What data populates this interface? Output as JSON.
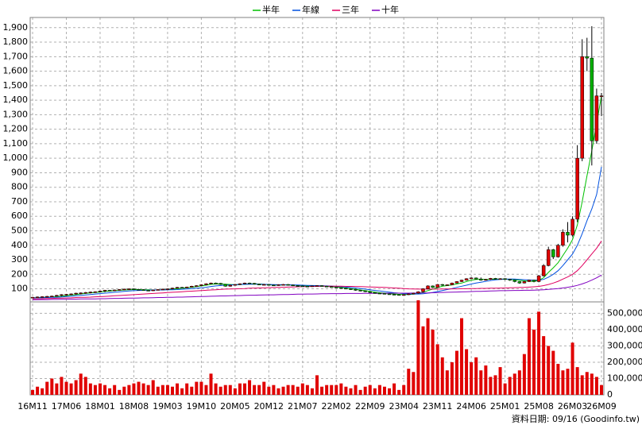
{
  "chart_data": {
    "type": "candlestick",
    "categories": [
      "16M11",
      null,
      null,
      null,
      null,
      null,
      null,
      "17M06",
      null,
      null,
      null,
      null,
      null,
      null,
      "18M01",
      null,
      null,
      null,
      null,
      null,
      null,
      "18M08",
      null,
      null,
      null,
      null,
      null,
      null,
      "19M03",
      null,
      null,
      null,
      null,
      null,
      null,
      "19M10",
      null,
      null,
      null,
      null,
      null,
      null,
      "20M05",
      null,
      null,
      null,
      null,
      null,
      null,
      "20M12",
      null,
      null,
      null,
      null,
      null,
      null,
      "21M07",
      null,
      null,
      null,
      null,
      null,
      null,
      "22M02",
      null,
      null,
      null,
      null,
      null,
      null,
      "22M09",
      null,
      null,
      null,
      null,
      null,
      null,
      "23M04",
      null,
      null,
      null,
      null,
      null,
      null,
      "23M11",
      null,
      null,
      null,
      null,
      null,
      null,
      "24M06",
      null,
      null,
      null,
      null,
      null,
      null,
      "25M01",
      null,
      null,
      null,
      null,
      null,
      null,
      "25M08",
      null,
      null,
      null,
      null,
      null,
      null,
      "26M03",
      null,
      null,
      null,
      null,
      null,
      "26M09"
    ],
    "open": [
      40,
      42,
      44,
      46,
      48,
      50,
      55,
      60,
      62,
      65,
      70,
      72,
      75,
      78,
      80,
      85,
      90,
      88,
      92,
      95,
      98,
      100,
      96,
      94,
      90,
      88,
      92,
      95,
      98,
      100,
      105,
      110,
      108,
      112,
      118,
      122,
      128,
      135,
      140,
      138,
      130,
      118,
      125,
      130,
      135,
      140,
      138,
      132,
      128,
      130,
      126,
      124,
      128,
      130,
      126,
      122,
      120,
      118,
      116,
      120,
      122,
      118,
      115,
      112,
      108,
      104,
      100,
      96,
      90,
      86,
      80,
      74,
      70,
      68,
      65,
      62,
      60,
      58,
      60,
      65,
      70,
      80,
      100,
      120,
      110,
      130,
      125,
      128,
      140,
      150,
      160,
      170,
      175,
      168,
      160,
      165,
      172,
      168,
      170,
      165,
      160,
      150,
      140,
      150,
      160,
      150,
      190,
      260,
      370,
      320,
      400,
      490,
      470,
      580,
      1000,
      1700,
      1690,
      1120,
      1430
    ],
    "high": [
      44,
      47,
      49,
      51,
      53,
      58,
      63,
      65,
      68,
      73,
      75,
      78,
      81,
      83,
      88,
      93,
      93,
      95,
      98,
      101,
      103,
      103,
      100,
      97,
      93,
      95,
      98,
      101,
      103,
      108,
      113,
      113,
      115,
      121,
      125,
      131,
      138,
      143,
      143,
      141,
      133,
      128,
      133,
      138,
      143,
      143,
      141,
      135,
      133,
      133,
      129,
      131,
      133,
      133,
      129,
      125,
      123,
      121,
      123,
      125,
      125,
      121,
      118,
      115,
      111,
      107,
      103,
      99,
      93,
      89,
      83,
      77,
      73,
      71,
      68,
      65,
      63,
      63,
      68,
      73,
      83,
      104,
      124,
      123,
      133,
      133,
      131,
      143,
      153,
      163,
      173,
      179,
      178,
      178,
      168,
      175,
      175,
      173,
      173,
      168,
      163,
      153,
      153,
      163,
      163,
      195,
      270,
      390,
      375,
      410,
      510,
      560,
      600,
      1090,
      1820,
      1830,
      1910,
      1480,
      1450
    ],
    "low": [
      37,
      39,
      41,
      43,
      45,
      47,
      49,
      53,
      57,
      59,
      62,
      66,
      69,
      72,
      75,
      77,
      85,
      85,
      88,
      91,
      94,
      93,
      90,
      87,
      85,
      85,
      89,
      92,
      95,
      97,
      102,
      105,
      105,
      109,
      115,
      119,
      125,
      132,
      134,
      127,
      115,
      115,
      122,
      127,
      132,
      134,
      129,
      125,
      125,
      123,
      121,
      121,
      125,
      123,
      119,
      117,
      115,
      113,
      113,
      117,
      115,
      112,
      108,
      105,
      101,
      97,
      93,
      87,
      83,
      77,
      71,
      67,
      65,
      62,
      59,
      57,
      55,
      55,
      57,
      62,
      67,
      77,
      97,
      106,
      107,
      121,
      122,
      125,
      137,
      147,
      157,
      167,
      164,
      156,
      157,
      162,
      164,
      165,
      160,
      155,
      145,
      135,
      137,
      147,
      145,
      145,
      185,
      255,
      305,
      315,
      390,
      420,
      460,
      560,
      980,
      1600,
      950,
      1100,
      1290
    ],
    "close": [
      42,
      44,
      46,
      48,
      50,
      55,
      60,
      62,
      65,
      70,
      72,
      75,
      78,
      80,
      85,
      90,
      88,
      92,
      95,
      98,
      100,
      96,
      94,
      90,
      88,
      92,
      95,
      98,
      100,
      105,
      110,
      108,
      112,
      118,
      122,
      128,
      135,
      140,
      138,
      130,
      118,
      125,
      130,
      135,
      140,
      138,
      132,
      128,
      130,
      126,
      124,
      128,
      130,
      126,
      122,
      120,
      118,
      116,
      120,
      122,
      118,
      115,
      112,
      108,
      104,
      100,
      96,
      90,
      86,
      80,
      74,
      70,
      68,
      65,
      62,
      60,
      58,
      60,
      65,
      70,
      80,
      100,
      120,
      110,
      130,
      125,
      128,
      140,
      150,
      160,
      170,
      175,
      168,
      160,
      165,
      172,
      168,
      170,
      165,
      160,
      150,
      140,
      150,
      160,
      150,
      190,
      260,
      370,
      320,
      400,
      490,
      470,
      580,
      1000,
      1700,
      1690,
      1120,
      1430,
      1430
    ],
    "up_color": "#e00000",
    "down_color": "#00b000",
    "volume": {
      "color": "#e00000",
      "values": [
        30000,
        50000,
        40000,
        80000,
        100000,
        70000,
        110000,
        80000,
        70000,
        90000,
        130000,
        110000,
        70000,
        60000,
        70000,
        60000,
        40000,
        60000,
        30000,
        50000,
        60000,
        70000,
        80000,
        70000,
        60000,
        90000,
        50000,
        60000,
        60000,
        50000,
        70000,
        40000,
        70000,
        50000,
        80000,
        80000,
        60000,
        130000,
        70000,
        50000,
        60000,
        60000,
        40000,
        70000,
        70000,
        90000,
        60000,
        60000,
        80000,
        50000,
        60000,
        40000,
        50000,
        60000,
        60000,
        50000,
        70000,
        60000,
        40000,
        120000,
        50000,
        60000,
        60000,
        60000,
        70000,
        50000,
        40000,
        60000,
        30000,
        50000,
        60000,
        40000,
        60000,
        50000,
        40000,
        70000,
        30000,
        60000,
        160000,
        140000,
        580000,
        420000,
        470000,
        400000,
        310000,
        230000,
        150000,
        200000,
        270000,
        470000,
        280000,
        200000,
        230000,
        150000,
        180000,
        110000,
        120000,
        170000,
        70000,
        110000,
        130000,
        150000,
        250000,
        470000,
        400000,
        510000,
        360000,
        300000,
        270000,
        190000,
        150000,
        160000,
        320000,
        170000,
        120000,
        140000,
        130000,
        110000,
        60000
      ]
    },
    "series": [
      {
        "name": "半年",
        "color": "#00c000",
        "values": [
          38,
          39,
          41,
          42,
          44,
          46,
          49,
          53,
          57,
          61,
          65,
          69,
          72,
          75,
          78,
          82,
          85,
          88,
          90,
          92,
          94,
          95,
          95,
          94,
          93,
          92,
          92,
          93,
          95,
          98,
          101,
          104,
          107,
          111,
          115,
          120,
          125,
          131,
          133,
          134,
          132,
          130,
          128,
          129,
          131,
          133,
          134,
          133,
          131,
          129,
          127,
          126,
          127,
          127,
          126,
          124,
          122,
          120,
          119,
          119,
          119,
          118,
          116,
          113,
          109,
          105,
          101,
          97,
          92,
          87,
          82,
          77,
          73,
          70,
          67,
          64,
          62,
          61,
          61,
          63,
          67,
          76,
          88,
          98,
          108,
          118,
          122,
          127,
          134,
          140,
          150,
          160,
          165,
          166,
          165,
          166,
          166,
          167,
          167,
          166,
          163,
          159,
          155,
          152,
          152,
          158,
          177,
          213,
          245,
          280,
          330,
          380,
          440,
          540,
          700,
          880,
          1050,
          1240,
          1430
        ]
      },
      {
        "name": "年線",
        "color": "#0050e0",
        "values": [
          38,
          38,
          39,
          40,
          41,
          42,
          44,
          46,
          49,
          52,
          55,
          58,
          61,
          64,
          67,
          70,
          73,
          76,
          79,
          82,
          85,
          87,
          89,
          90,
          91,
          92,
          92,
          92,
          93,
          94,
          95,
          97,
          99,
          101,
          104,
          107,
          111,
          116,
          120,
          123,
          125,
          127,
          128,
          130,
          131,
          132,
          132,
          132,
          131,
          130,
          129,
          128,
          128,
          127,
          127,
          126,
          125,
          124,
          123,
          122,
          121,
          120,
          119,
          117,
          115,
          112,
          109,
          106,
          102,
          98,
          93,
          89,
          85,
          81,
          77,
          73,
          70,
          67,
          65,
          64,
          64,
          66,
          70,
          75,
          81,
          88,
          95,
          102,
          110,
          118,
          125,
          133,
          140,
          146,
          152,
          157,
          162,
          165,
          166,
          167,
          167,
          165,
          163,
          161,
          160,
          160,
          165,
          180,
          200,
          225,
          260,
          300,
          340,
          400,
          480,
          570,
          650,
          750,
          940
        ]
      },
      {
        "name": "三年",
        "color": "#e00060",
        "values": [
          30,
          31,
          32,
          33,
          34,
          35,
          36,
          37,
          38,
          40,
          41,
          42,
          43,
          45,
          46,
          48,
          50,
          52,
          54,
          56,
          58,
          60,
          62,
          64,
          66,
          68,
          70,
          72,
          74,
          76,
          78,
          80,
          82,
          84,
          86,
          88,
          90,
          92,
          94,
          96,
          98,
          99,
          100,
          101,
          102,
          104,
          105,
          106,
          107,
          108,
          109,
          110,
          111,
          112,
          113,
          114,
          115,
          116,
          117,
          117,
          118,
          118,
          118,
          118,
          118,
          117,
          117,
          116,
          115,
          114,
          113,
          112,
          111,
          110,
          108,
          106,
          104,
          102,
          100,
          99,
          98,
          98,
          98,
          98,
          98,
          99,
          99,
          100,
          100,
          101,
          101,
          102,
          102,
          103,
          103,
          104,
          104,
          105,
          106,
          107,
          108,
          109,
          110,
          112,
          114,
          117,
          122,
          130,
          140,
          152,
          167,
          182,
          200,
          225,
          260,
          300,
          340,
          380,
          430
        ]
      },
      {
        "name": "十年",
        "color": "#8000c0",
        "values": [
          25,
          25,
          26,
          26,
          27,
          27,
          28,
          28,
          29,
          29,
          30,
          30,
          31,
          31,
          32,
          32,
          33,
          34,
          34,
          35,
          36,
          36,
          37,
          38,
          38,
          39,
          40,
          40,
          41,
          42,
          43,
          43,
          44,
          45,
          46,
          47,
          48,
          49,
          50,
          51,
          51,
          52,
          53,
          54,
          55,
          56,
          56,
          57,
          58,
          59,
          59,
          60,
          61,
          61,
          62,
          63,
          63,
          64,
          64,
          65,
          66,
          66,
          67,
          67,
          67,
          68,
          68,
          68,
          68,
          69,
          69,
          69,
          69,
          69,
          70,
          70,
          70,
          70,
          70,
          71,
          71,
          72,
          72,
          73,
          74,
          75,
          76,
          77,
          78,
          79,
          80,
          81,
          82,
          83,
          84,
          85,
          86,
          87,
          87,
          88,
          89,
          89,
          90,
          90,
          91,
          92,
          94,
          96,
          99,
          102,
          106,
          111,
          116,
          124,
          134,
          146,
          160,
          176,
          195
        ]
      }
    ],
    "ylim": [
      10,
      1970
    ],
    "yticks": [
      100,
      200,
      300,
      400,
      500,
      600,
      700,
      800,
      900,
      {
        "value": 1000,
        "label": "1,000"
      },
      {
        "value": 1100,
        "label": "1,100"
      },
      {
        "value": 1200,
        "label": "1,200"
      },
      {
        "value": 1300,
        "label": "1,300"
      },
      {
        "value": 1400,
        "label": "1,400"
      },
      {
        "value": 1500,
        "label": "1,500"
      },
      {
        "value": 1600,
        "label": "1,600"
      },
      {
        "value": 1700,
        "label": "1,700"
      },
      {
        "value": 1800,
        "label": "1,800"
      },
      {
        "value": 1900,
        "label": "1,900"
      }
    ],
    "y2lim": [
      0,
      570000
    ],
    "y2ticks": [
      0,
      {
        "value": 100000,
        "label": "100,000"
      },
      {
        "value": 200000,
        "label": "200,000"
      },
      {
        "value": 300000,
        "label": "300,000"
      },
      {
        "value": 400000,
        "label": "400,000"
      },
      {
        "value": 500000,
        "label": "500,000"
      }
    ],
    "grid": true,
    "footer": "資料日期: 09/16 (Goodinfo.tw)"
  }
}
